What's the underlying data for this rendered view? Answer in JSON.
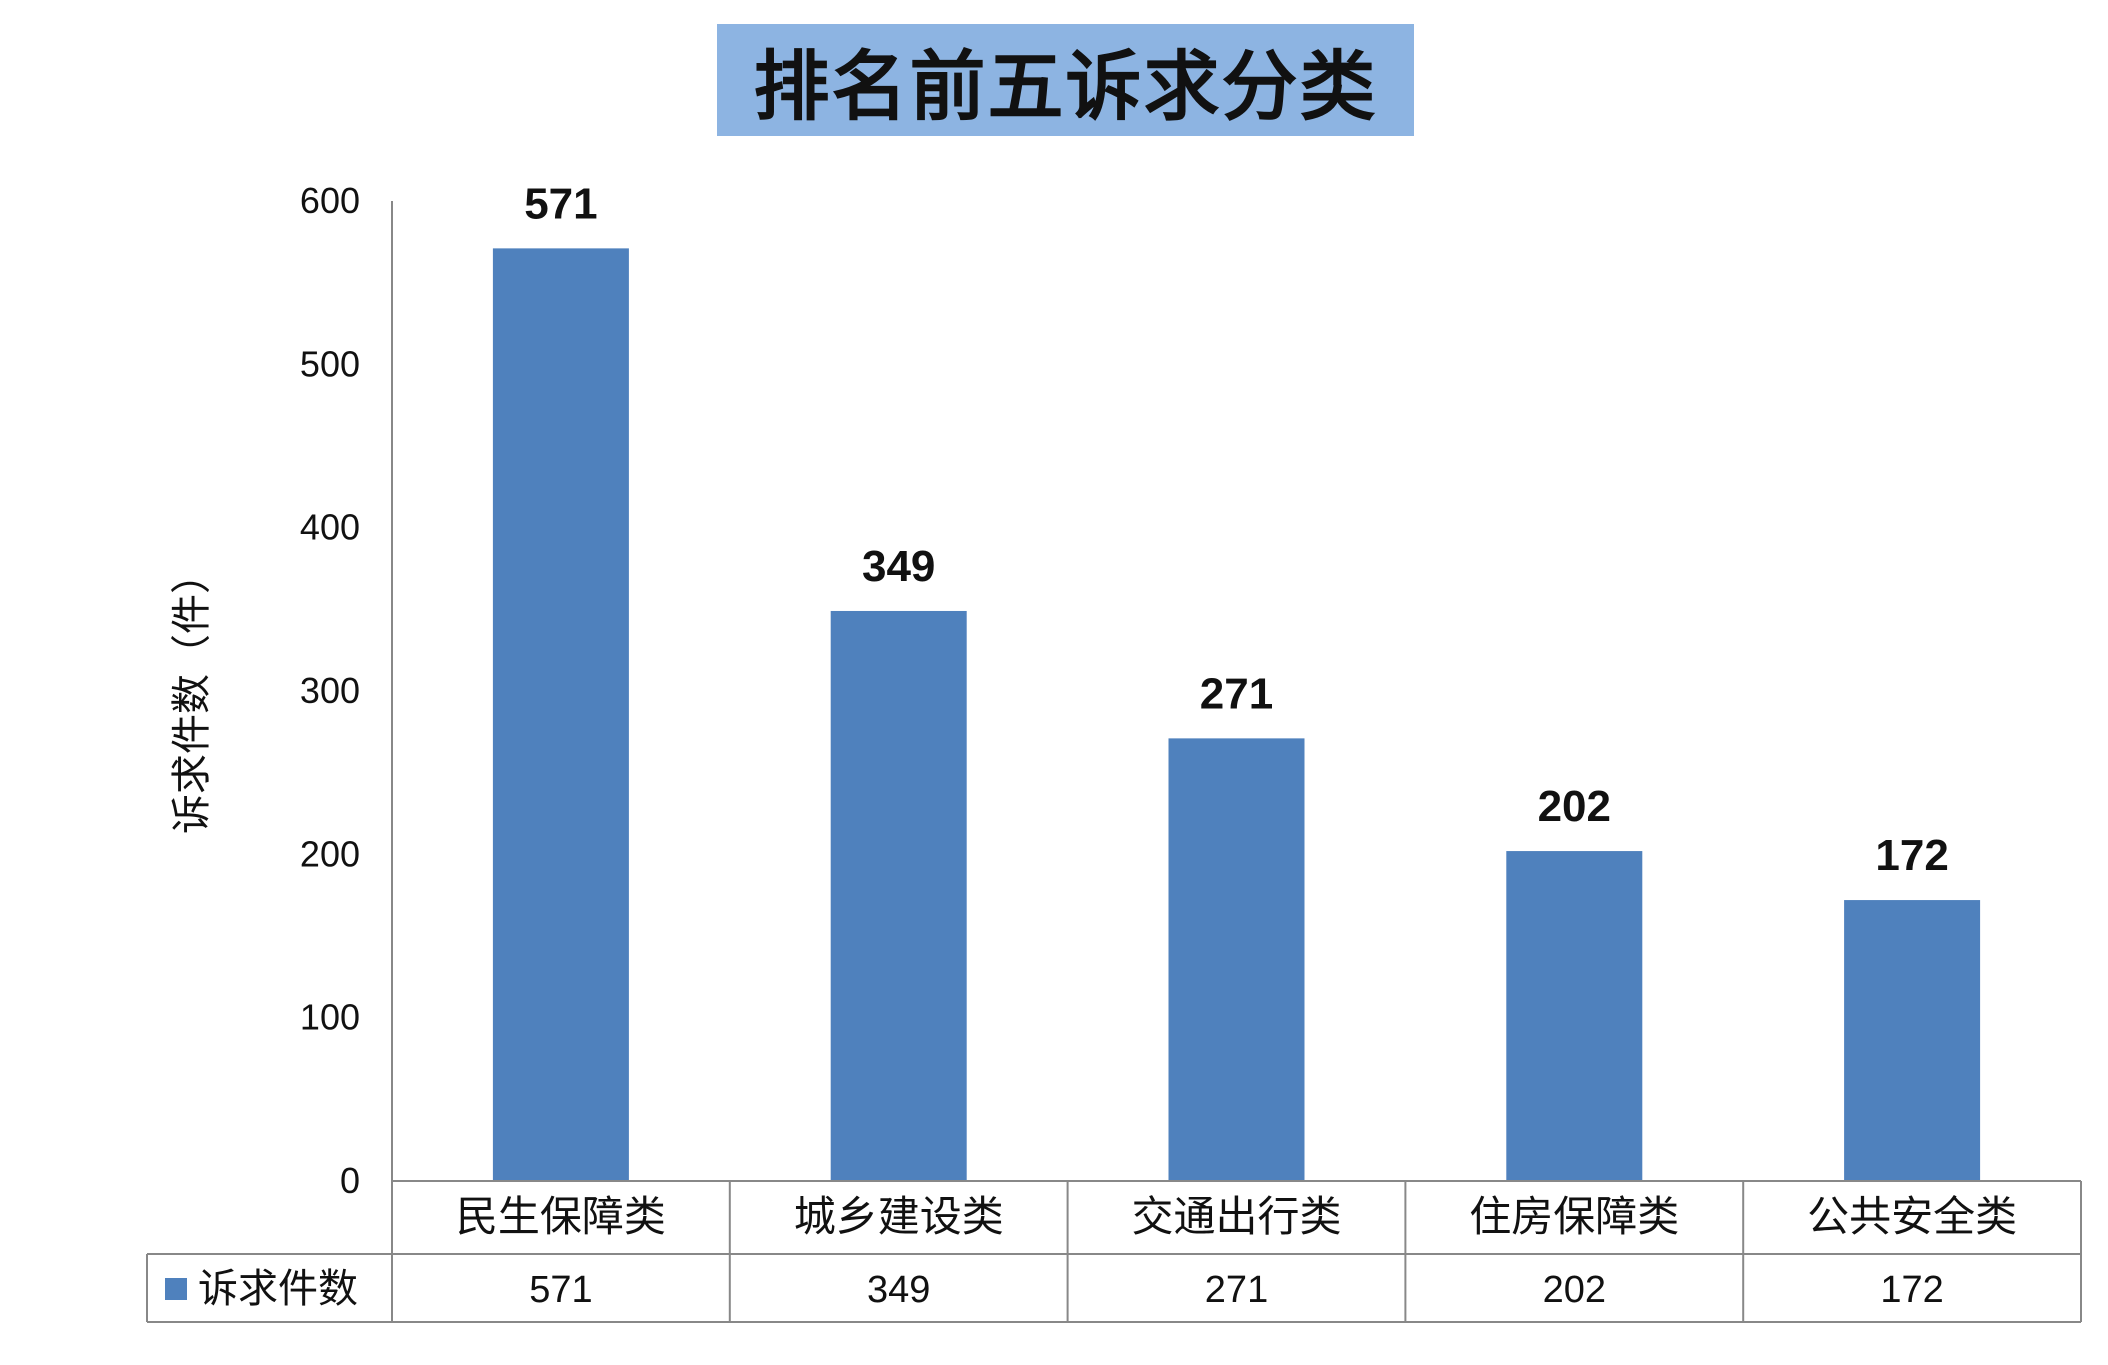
{
  "chart_data": {
    "type": "bar",
    "title": "排名前五诉求分类",
    "ylabel": "诉求件数（件）",
    "xlabel": "",
    "ylim": [
      0,
      600
    ],
    "yticks": [
      0,
      100,
      200,
      300,
      400,
      500,
      600
    ],
    "grid": false,
    "categories": [
      "民生保障类",
      "城乡建设类",
      "交通出行类",
      "住房保障类",
      "公共安全类"
    ],
    "series": [
      {
        "name": "诉求件数",
        "values": [
          571,
          349,
          271,
          202,
          172
        ],
        "color": "#4F81BD"
      }
    ],
    "data_labels": true,
    "data_table": true,
    "title_background": "#8DB4E2"
  }
}
